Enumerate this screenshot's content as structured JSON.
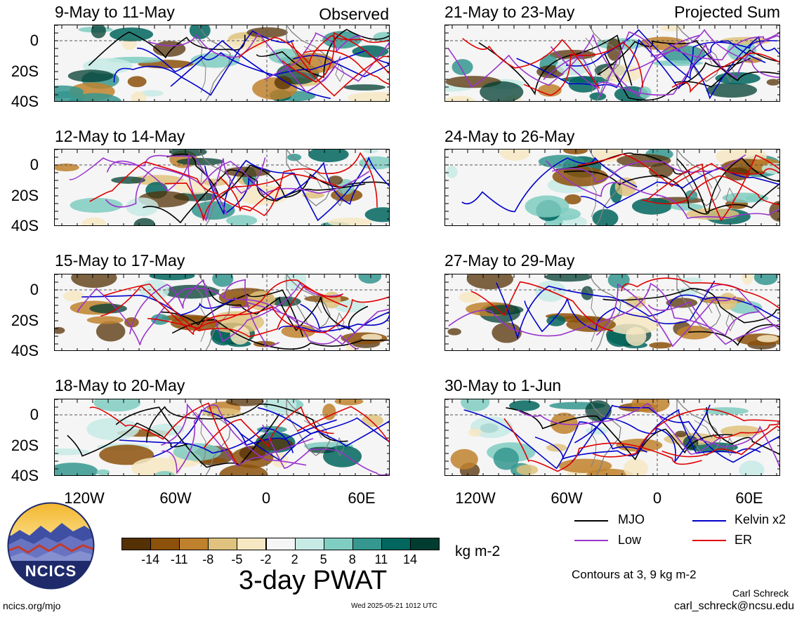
{
  "left_column_label": "Observed",
  "right_column_label": "Projected Sum",
  "left_panels": [
    "9-May to 11-May",
    "12-May to 14-May",
    "15-May to 17-May",
    "18-May to 20-May"
  ],
  "right_panels": [
    "21-May to 23-May",
    "24-May to 26-May",
    "27-May to 29-May",
    "30-May to 1-Jun"
  ],
  "y_ticks": [
    "0",
    "20S",
    "40S"
  ],
  "x_ticks": [
    "120W",
    "60W",
    "0",
    "60E"
  ],
  "colorbar": {
    "title": "3-day PWAT",
    "units": "kg m-2",
    "ticks": [
      "-14",
      "-11",
      "-8",
      "-5",
      "-2",
      "2",
      "5",
      "8",
      "11",
      "14"
    ],
    "colors": [
      "#543005",
      "#8c510a",
      "#bf812d",
      "#dfc27d",
      "#f6e8c3",
      "#f5f5f5",
      "#c7eae5",
      "#80cdc1",
      "#35978f",
      "#01665e",
      "#003c30"
    ]
  },
  "legend": {
    "items": [
      {
        "label": "MJO",
        "color": "#000000"
      },
      {
        "label": "Kelvin x2",
        "color": "#0000cc"
      },
      {
        "label": "Low",
        "color": "#9933cc"
      },
      {
        "label": "ER",
        "color": "#e00000"
      }
    ],
    "contours_note": "Contours at 3, 9 kg m-2"
  },
  "logo_text": "NCICS",
  "footer": {
    "url": "ncics.org/mjo",
    "timestamp": "Wed 2025-05-21 1012 UTC",
    "author": "Carl Schreck",
    "email": "carl_schreck@ncsu.edu"
  }
}
